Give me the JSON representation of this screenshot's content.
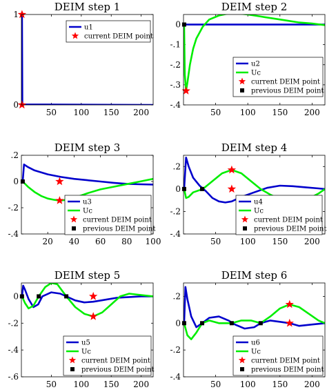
{
  "chart_data": [
    {
      "type": "line",
      "title": "DEIM step 1",
      "xlim": [
        0,
        220
      ],
      "ylim": [
        0,
        1
      ],
      "xticks": [
        50,
        100,
        150,
        200
      ],
      "yticks": [
        0,
        1
      ],
      "legend_position": "top-right",
      "series": [
        {
          "name": "u1",
          "color": "#0000cc",
          "points": [
            [
              1,
              1
            ],
            [
              1.6,
              0.02
            ],
            [
              3,
              0.005
            ],
            [
              220,
              0
            ]
          ]
        }
      ],
      "current_points": {
        "name": "current DEIM point",
        "color": "#ff0000",
        "points": [
          [
            1,
            1
          ],
          [
            1,
            0
          ]
        ]
      },
      "previous_points": null
    },
    {
      "type": "line",
      "title": "DEIM step 2",
      "xlim": [
        0,
        220
      ],
      "ylim": [
        -0.4,
        0.05
      ],
      "xticks": [
        50,
        100,
        150,
        200
      ],
      "yticks": [
        -0.4,
        -0.3,
        -0.2,
        -0.1,
        0
      ],
      "legend_position": "bottom-right",
      "series": [
        {
          "name": "u2",
          "color": "#0000cc",
          "points": [
            [
              1,
              0
            ],
            [
              220,
              0
            ]
          ]
        },
        {
          "name": "Uc",
          "color": "#00ee00",
          "points": [
            [
              1,
              0
            ],
            [
              2,
              -0.25
            ],
            [
              4,
              -0.33
            ],
            [
              6,
              -0.29
            ],
            [
              10,
              -0.2
            ],
            [
              15,
              -0.12
            ],
            [
              20,
              -0.07
            ],
            [
              30,
              -0.01
            ],
            [
              40,
              0.025
            ],
            [
              55,
              0.045
            ],
            [
              70,
              0.055
            ],
            [
              85,
              0.055
            ],
            [
              100,
              0.05
            ],
            [
              120,
              0.04
            ],
            [
              140,
              0.03
            ],
            [
              160,
              0.02
            ],
            [
              180,
              0.01
            ],
            [
              200,
              0.005
            ],
            [
              220,
              -0.003
            ]
          ]
        }
      ],
      "current_points": {
        "name": "current DEIM point",
        "color": "#ff0000",
        "points": [
          [
            4,
            -0.33
          ]
        ]
      },
      "previous_points": {
        "name": "previous DEIM point",
        "points": [
          [
            1,
            0
          ]
        ]
      }
    },
    {
      "type": "line",
      "title": "DEIM step 3",
      "xlim": [
        0,
        100
      ],
      "ylim": [
        -0.4,
        0.2
      ],
      "xticks": [
        20,
        40,
        60,
        80,
        100
      ],
      "yticks": [
        -0.4,
        -0.2,
        0,
        0.2
      ],
      "legend_position": "bottom-right",
      "series": [
        {
          "name": "u3",
          "color": "#0000cc",
          "points": [
            [
              1,
              0
            ],
            [
              2,
              0.13
            ],
            [
              5,
              0.11
            ],
            [
              10,
              0.085
            ],
            [
              20,
              0.055
            ],
            [
              30,
              0.035
            ],
            [
              40,
              0.02
            ],
            [
              50,
              0.01
            ],
            [
              60,
              0
            ],
            [
              70,
              -0.01
            ],
            [
              80,
              -0.018
            ],
            [
              90,
              -0.021
            ],
            [
              100,
              -0.023
            ]
          ]
        },
        {
          "name": "Uc",
          "color": "#00ee00",
          "points": [
            [
              1,
              0
            ],
            [
              5,
              -0.04
            ],
            [
              10,
              -0.08
            ],
            [
              15,
              -0.11
            ],
            [
              20,
              -0.13
            ],
            [
              25,
              -0.14
            ],
            [
              29,
              -0.145
            ],
            [
              35,
              -0.14
            ],
            [
              40,
              -0.125
            ],
            [
              50,
              -0.09
            ],
            [
              60,
              -0.06
            ],
            [
              70,
              -0.04
            ],
            [
              80,
              -0.02
            ],
            [
              90,
              0.0
            ],
            [
              100,
              0.02
            ]
          ]
        }
      ],
      "current_points": {
        "name": "current DEIM point",
        "color": "#ff0000",
        "points": [
          [
            29,
            0
          ],
          [
            29,
            -0.145
          ]
        ]
      },
      "previous_points": {
        "name": "previous DEIM point",
        "points": [
          [
            1,
            0
          ]
        ]
      }
    },
    {
      "type": "line",
      "title": "DEIM step 4",
      "xlim": [
        0,
        220
      ],
      "ylim": [
        -0.4,
        0.3
      ],
      "xticks": [
        50,
        100,
        150,
        200
      ],
      "yticks": [
        -0.4,
        -0.2,
        0,
        0.2
      ],
      "legend_position": "bottom-right",
      "series": [
        {
          "name": "u4",
          "color": "#0000cc",
          "points": [
            [
              1,
              0
            ],
            [
              4,
              0.28
            ],
            [
              8,
              0.2
            ],
            [
              15,
              0.1
            ],
            [
              25,
              0.03
            ],
            [
              35,
              -0.02
            ],
            [
              45,
              -0.08
            ],
            [
              55,
              -0.11
            ],
            [
              65,
              -0.12
            ],
            [
              75,
              -0.11
            ],
            [
              90,
              -0.07
            ],
            [
              110,
              -0.03
            ],
            [
              130,
              0.01
            ],
            [
              150,
              0.03
            ],
            [
              170,
              0.025
            ],
            [
              190,
              0.015
            ],
            [
              210,
              0.005
            ],
            [
              220,
              0
            ]
          ]
        },
        {
          "name": "Uc",
          "color": "#00ee00",
          "points": [
            [
              1,
              0
            ],
            [
              4,
              -0.08
            ],
            [
              8,
              -0.07
            ],
            [
              15,
              -0.03
            ],
            [
              30,
              0.0
            ],
            [
              45,
              0.07
            ],
            [
              60,
              0.14
            ],
            [
              75,
              0.17
            ],
            [
              90,
              0.14
            ],
            [
              105,
              0.07
            ],
            [
              120,
              0.0
            ],
            [
              135,
              -0.05
            ],
            [
              150,
              -0.09
            ],
            [
              160,
              -0.11
            ],
            [
              170,
              -0.12
            ],
            [
              185,
              -0.1
            ],
            [
              200,
              -0.07
            ],
            [
              210,
              -0.04
            ],
            [
              220,
              0
            ]
          ]
        }
      ],
      "current_points": {
        "name": "current DEIM point",
        "color": "#ff0000",
        "points": [
          [
            75,
            0.17
          ],
          [
            75,
            0
          ]
        ]
      },
      "previous_points": {
        "name": "previous DEIM point",
        "points": [
          [
            1,
            0
          ],
          [
            29,
            0
          ]
        ]
      }
    },
    {
      "type": "line",
      "title": "DEIM step 5",
      "xlim": [
        0,
        220
      ],
      "ylim": [
        -0.6,
        0.1
      ],
      "xticks": [
        50,
        100,
        150,
        200
      ],
      "yticks": [
        -0.6,
        -0.4,
        -0.2,
        0
      ],
      "legend_position": "bottom-right",
      "series": [
        {
          "name": "u5",
          "color": "#0000cc",
          "points": [
            [
              1,
              0
            ],
            [
              3,
              0.08
            ],
            [
              6,
              0.05
            ],
            [
              12,
              -0.02
            ],
            [
              20,
              -0.08
            ],
            [
              28,
              -0.06
            ],
            [
              35,
              0.0
            ],
            [
              50,
              0.03
            ],
            [
              65,
              0.02
            ],
            [
              75,
              0.0
            ],
            [
              90,
              -0.03
            ],
            [
              105,
              -0.045
            ],
            [
              120,
              -0.04
            ],
            [
              140,
              -0.025
            ],
            [
              160,
              -0.01
            ],
            [
              180,
              -0.005
            ],
            [
              200,
              0.0
            ],
            [
              220,
              0.0
            ]
          ]
        },
        {
          "name": "Uc",
          "color": "#00ee00",
          "points": [
            [
              1,
              0
            ],
            [
              6,
              -0.05
            ],
            [
              12,
              -0.09
            ],
            [
              20,
              -0.07
            ],
            [
              29,
              0.0
            ],
            [
              40,
              0.07
            ],
            [
              50,
              0.1
            ],
            [
              60,
              0.09
            ],
            [
              75,
              0.0
            ],
            [
              90,
              -0.08
            ],
            [
              105,
              -0.13
            ],
            [
              120,
              -0.15
            ],
            [
              135,
              -0.12
            ],
            [
              150,
              -0.06
            ],
            [
              165,
              0.0
            ],
            [
              180,
              0.02
            ],
            [
              200,
              0.01
            ],
            [
              220,
              0.0
            ]
          ]
        }
      ],
      "current_points": {
        "name": "current DEIM point",
        "color": "#ff0000",
        "points": [
          [
            120,
            0
          ],
          [
            120,
            -0.15
          ]
        ]
      },
      "previous_points": {
        "name": "previous DEIM point",
        "points": [
          [
            1,
            0
          ],
          [
            29,
            0
          ],
          [
            75,
            0
          ]
        ]
      }
    },
    {
      "type": "line",
      "title": "DEIM step 6",
      "xlim": [
        0,
        220
      ],
      "ylim": [
        -0.4,
        0.3
      ],
      "xticks": [
        50,
        100,
        150,
        200
      ],
      "yticks": [
        -0.4,
        -0.2,
        0,
        0.2
      ],
      "legend_position": "bottom-right",
      "series": [
        {
          "name": "u6",
          "color": "#0000cc",
          "points": [
            [
              1,
              0
            ],
            [
              3,
              0.27
            ],
            [
              6,
              0.18
            ],
            [
              12,
              0.05
            ],
            [
              20,
              -0.03
            ],
            [
              29,
              0.0
            ],
            [
              40,
              0.04
            ],
            [
              55,
              0.05
            ],
            [
              70,
              0.02
            ],
            [
              80,
              -0.01
            ],
            [
              95,
              -0.04
            ],
            [
              110,
              -0.03
            ],
            [
              120,
              0.0
            ],
            [
              135,
              0.02
            ],
            [
              150,
              0.01
            ],
            [
              165,
              0.0
            ],
            [
              180,
              -0.02
            ],
            [
              200,
              -0.01
            ],
            [
              220,
              0.0
            ]
          ]
        },
        {
          "name": "Uc",
          "color": "#00ee00",
          "points": [
            [
              1,
              0
            ],
            [
              6,
              -0.09
            ],
            [
              12,
              -0.12
            ],
            [
              20,
              -0.07
            ],
            [
              29,
              0.0
            ],
            [
              40,
              0.02
            ],
            [
              55,
              0.0
            ],
            [
              75,
              0.0
            ],
            [
              90,
              0.02
            ],
            [
              105,
              0.02
            ],
            [
              120,
              0.0
            ],
            [
              135,
              0.05
            ],
            [
              150,
              0.11
            ],
            [
              165,
              0.14
            ],
            [
              180,
              0.12
            ],
            [
              195,
              0.07
            ],
            [
              210,
              0.02
            ],
            [
              220,
              0.0
            ]
          ]
        }
      ],
      "current_points": {
        "name": "current DEIM point",
        "color": "#ff0000",
        "points": [
          [
            165,
            0.14
          ],
          [
            165,
            0
          ]
        ]
      },
      "previous_points": {
        "name": "previous DEIM point",
        "points": [
          [
            1,
            0
          ],
          [
            29,
            0
          ],
          [
            75,
            0
          ],
          [
            120,
            0
          ]
        ]
      }
    }
  ]
}
